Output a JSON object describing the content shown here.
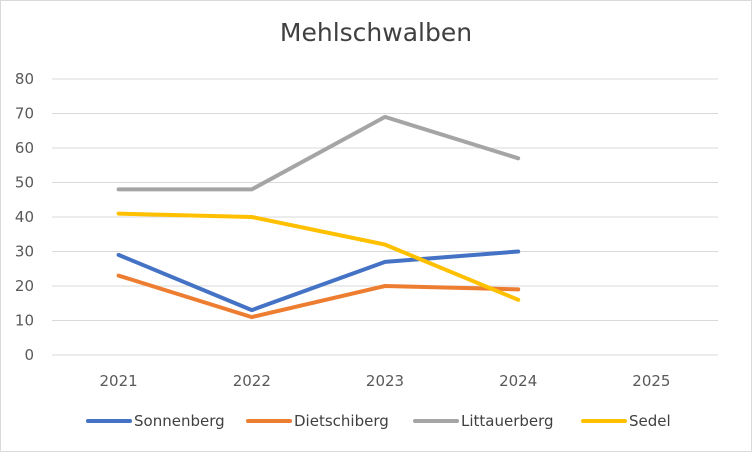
{
  "chart_data": {
    "type": "line",
    "title": "Mehlschwalben",
    "categories": [
      "2021",
      "2022",
      "2023",
      "2024",
      "2025"
    ],
    "ylim": [
      0,
      80
    ],
    "yticks": [
      0,
      10,
      20,
      30,
      40,
      50,
      60,
      70,
      80
    ],
    "grid": true,
    "legend_position": "bottom",
    "series": [
      {
        "name": "Sonnenberg",
        "color": "#4472c4",
        "values": [
          29,
          13,
          27,
          30,
          null
        ]
      },
      {
        "name": "Dietschiberg",
        "color": "#ed7d31",
        "values": [
          23,
          11,
          20,
          19,
          null
        ]
      },
      {
        "name": "Littauerberg",
        "color": "#a5a5a5",
        "values": [
          48,
          48,
          69,
          57,
          null
        ]
      },
      {
        "name": "Sedel",
        "color": "#ffc000",
        "values": [
          41,
          40,
          32,
          16,
          null
        ]
      }
    ]
  }
}
